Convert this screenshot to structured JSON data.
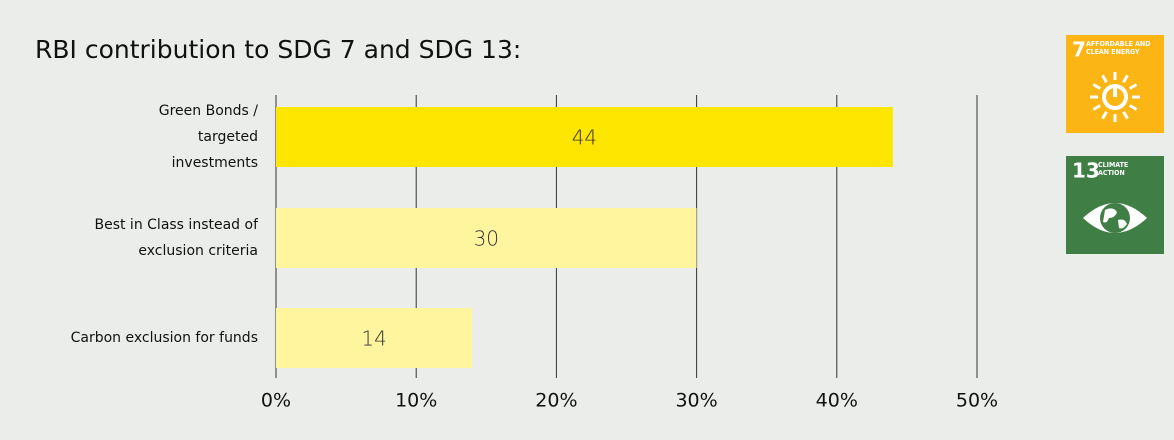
{
  "chart_data": {
    "type": "barh",
    "title": "RBI contribution to SDG 7 and SDG 13:",
    "categories": [
      "Green Bonds / targeted investments",
      "Best in Class instead of exclusion criteria",
      "Carbon exclusion for funds"
    ],
    "values": [
      44,
      30,
      14
    ],
    "colors": [
      "#ffe600",
      "#fff59e",
      "#fff59e"
    ],
    "xlim": [
      0,
      50
    ],
    "xticks": [
      {
        "value": 0,
        "label": "0%"
      },
      {
        "value": 10,
        "label": "10%"
      },
      {
        "value": 20,
        "label": "20%"
      },
      {
        "value": 30,
        "label": "30%"
      },
      {
        "value": 40,
        "label": "40%"
      },
      {
        "value": 50,
        "label": "50%"
      }
    ],
    "grid": true
  },
  "icons": [
    {
      "number": "7",
      "label": "AFFORDABLE AND CLEAN ENERGY",
      "color": "#fbb515"
    },
    {
      "number": "13",
      "label": "CLIMATE ACTION",
      "color": "#3f7e44"
    }
  ]
}
